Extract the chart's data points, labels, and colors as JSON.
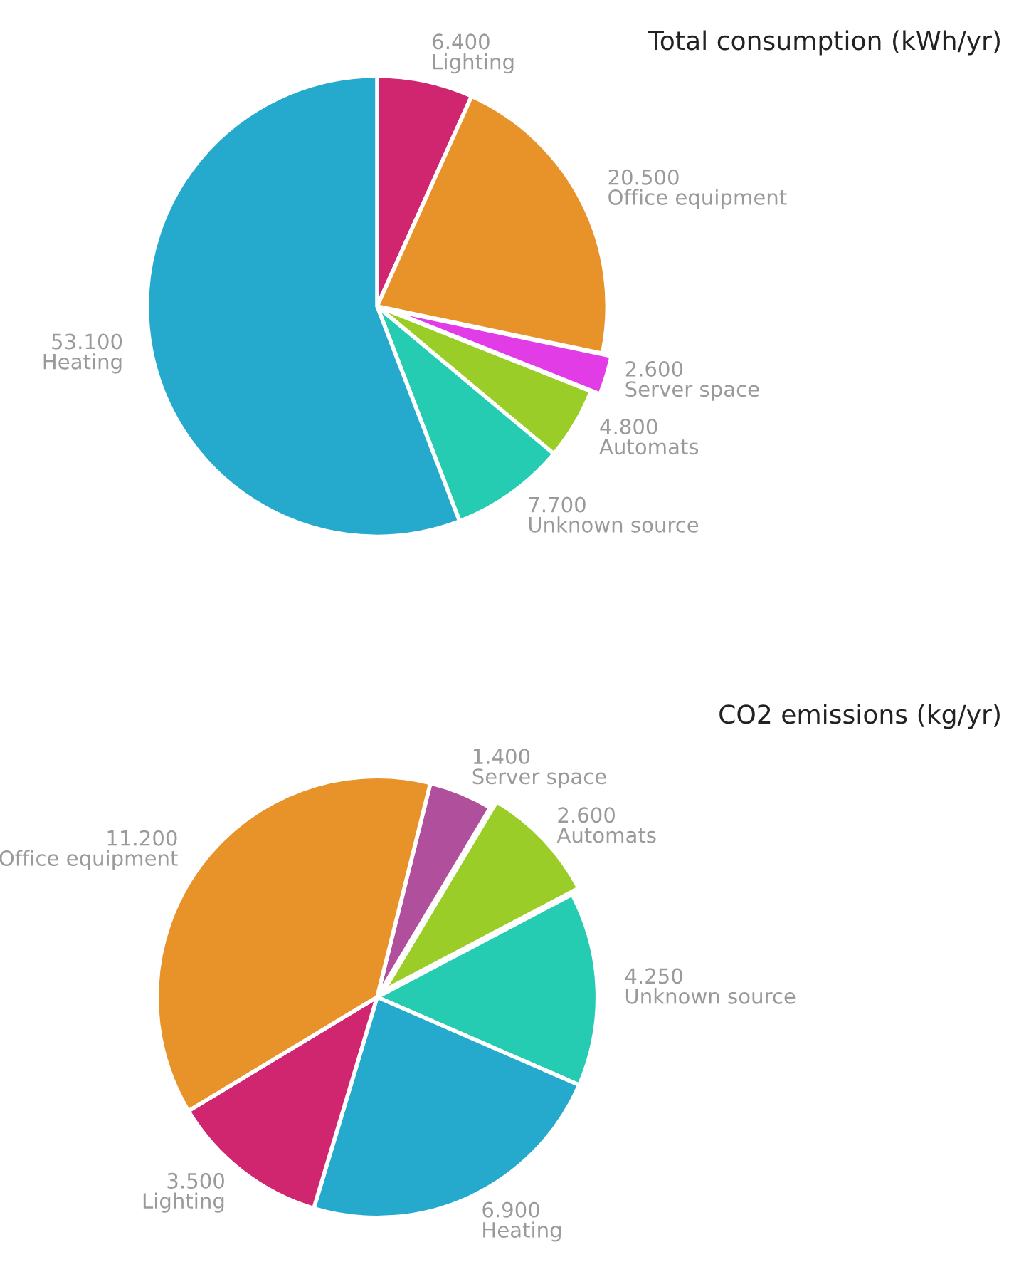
{
  "chart_data": [
    {
      "type": "pie",
      "title": "Total consumption (kWh/yr)",
      "categories": [
        "Lighting",
        "Office equipment",
        "Server space",
        "Automats",
        "Unknown source",
        "Heating"
      ],
      "values": [
        6400,
        20500,
        2600,
        4800,
        7700,
        53100
      ],
      "value_labels": [
        "6.400",
        "20.500",
        "2.600",
        "4.800",
        "7.700",
        "53.100"
      ],
      "colors": [
        "#d0266f",
        "#e8922a",
        "#e23ce6",
        "#9bcd28",
        "#26ccb2",
        "#25a9cc"
      ]
    },
    {
      "type": "pie",
      "title": "CO2 emissions (kg/yr)",
      "categories": [
        "Server space",
        "Automats",
        "Unknown source",
        "Heating",
        "Lighting",
        "Office equipment"
      ],
      "values": [
        1400,
        2600,
        4250,
        6900,
        3500,
        11200
      ],
      "value_labels": [
        "1.400",
        "2.600",
        "4.250",
        "6.900",
        "3.500",
        "11.200"
      ],
      "colors": [
        "#b0509c",
        "#9bcd28",
        "#26ccb2",
        "#25a9cc",
        "#d0266f",
        "#e8922a"
      ]
    }
  ]
}
